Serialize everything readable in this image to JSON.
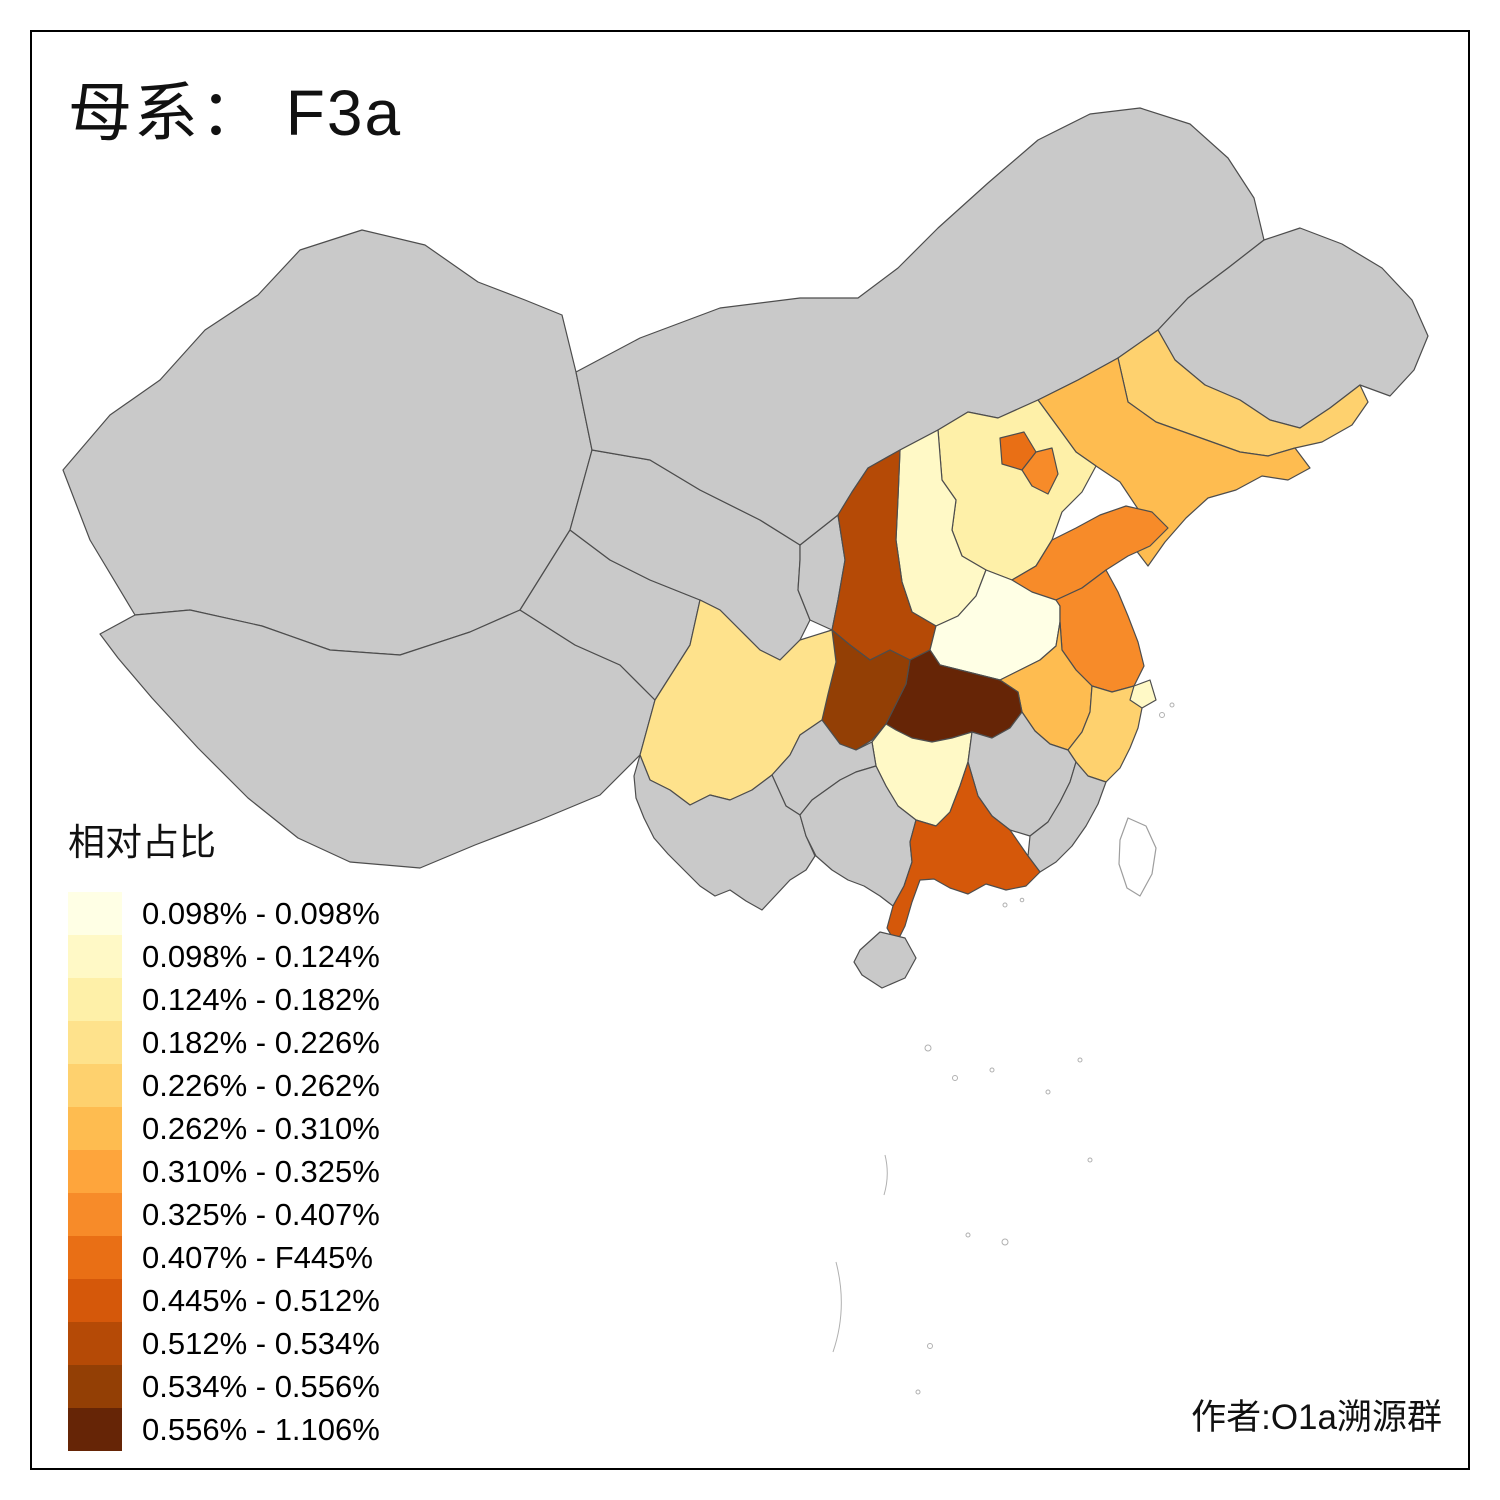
{
  "title": "母系： F3a",
  "author": "作者:O1a溯源群",
  "legend": {
    "title": "相对占比",
    "items": [
      {
        "label": "0.098% - 0.098%",
        "color": "#FFFFE5"
      },
      {
        "label": "0.098% - 0.124%",
        "color": "#FFF9C6"
      },
      {
        "label": "0.124% - 0.182%",
        "color": "#FEF0A8"
      },
      {
        "label": "0.182% - 0.226%",
        "color": "#FEE28C"
      },
      {
        "label": "0.226% - 0.262%",
        "color": "#FED16E"
      },
      {
        "label": "0.262% - 0.310%",
        "color": "#FEBC50"
      },
      {
        "label": "0.310% - 0.325%",
        "color": "#FEA53C"
      },
      {
        "label": "0.325% - 0.407%",
        "color": "#F78B29"
      },
      {
        "label": "0.407% - F445%",
        "color": "#E96F15"
      },
      {
        "label": "0.445% - 0.512%",
        "color": "#D5580A"
      },
      {
        "label": "0.512% - 0.534%",
        "color": "#B54A06"
      },
      {
        "label": "0.534% - 0.556%",
        "color": "#933F05"
      },
      {
        "label": "0.556% - 1.106%",
        "color": "#662506"
      }
    ]
  },
  "map": {
    "na_color": "#C9C9C9",
    "border_color": "#4D4D4D",
    "provinces": [
      {
        "id": "xinjiang",
        "bin": null
      },
      {
        "id": "tibet",
        "bin": null
      },
      {
        "id": "qinghai",
        "bin": null
      },
      {
        "id": "gansu",
        "bin": null
      },
      {
        "id": "ningxia",
        "bin": null
      },
      {
        "id": "inner-mongolia",
        "bin": null
      },
      {
        "id": "heilongjiang",
        "bin": null
      },
      {
        "id": "jilin",
        "bin": 5
      },
      {
        "id": "liaoning",
        "bin": 6
      },
      {
        "id": "hebei",
        "bin": 3
      },
      {
        "id": "beijing",
        "bin": 9
      },
      {
        "id": "tianjin",
        "bin": 8
      },
      {
        "id": "shanxi",
        "bin": 2
      },
      {
        "id": "shaanxi",
        "bin": 11
      },
      {
        "id": "henan",
        "bin": 1
      },
      {
        "id": "shandong",
        "bin": 8
      },
      {
        "id": "jiangsu",
        "bin": 8
      },
      {
        "id": "shanghai",
        "bin": 2
      },
      {
        "id": "anhui",
        "bin": 6
      },
      {
        "id": "zhejiang",
        "bin": 5
      },
      {
        "id": "hubei",
        "bin": 13
      },
      {
        "id": "chongqing",
        "bin": 12
      },
      {
        "id": "sichuan",
        "bin": 4
      },
      {
        "id": "hunan",
        "bin": 2
      },
      {
        "id": "jiangxi",
        "bin": null
      },
      {
        "id": "fujian",
        "bin": null
      },
      {
        "id": "guizhou",
        "bin": null
      },
      {
        "id": "yunnan",
        "bin": null
      },
      {
        "id": "guangxi",
        "bin": null
      },
      {
        "id": "guangdong",
        "bin": 10
      },
      {
        "id": "hainan",
        "bin": null
      },
      {
        "id": "taiwan",
        "bin": null,
        "fill": "#FFFFFF",
        "stroke": "#9E9E9E"
      }
    ]
  }
}
